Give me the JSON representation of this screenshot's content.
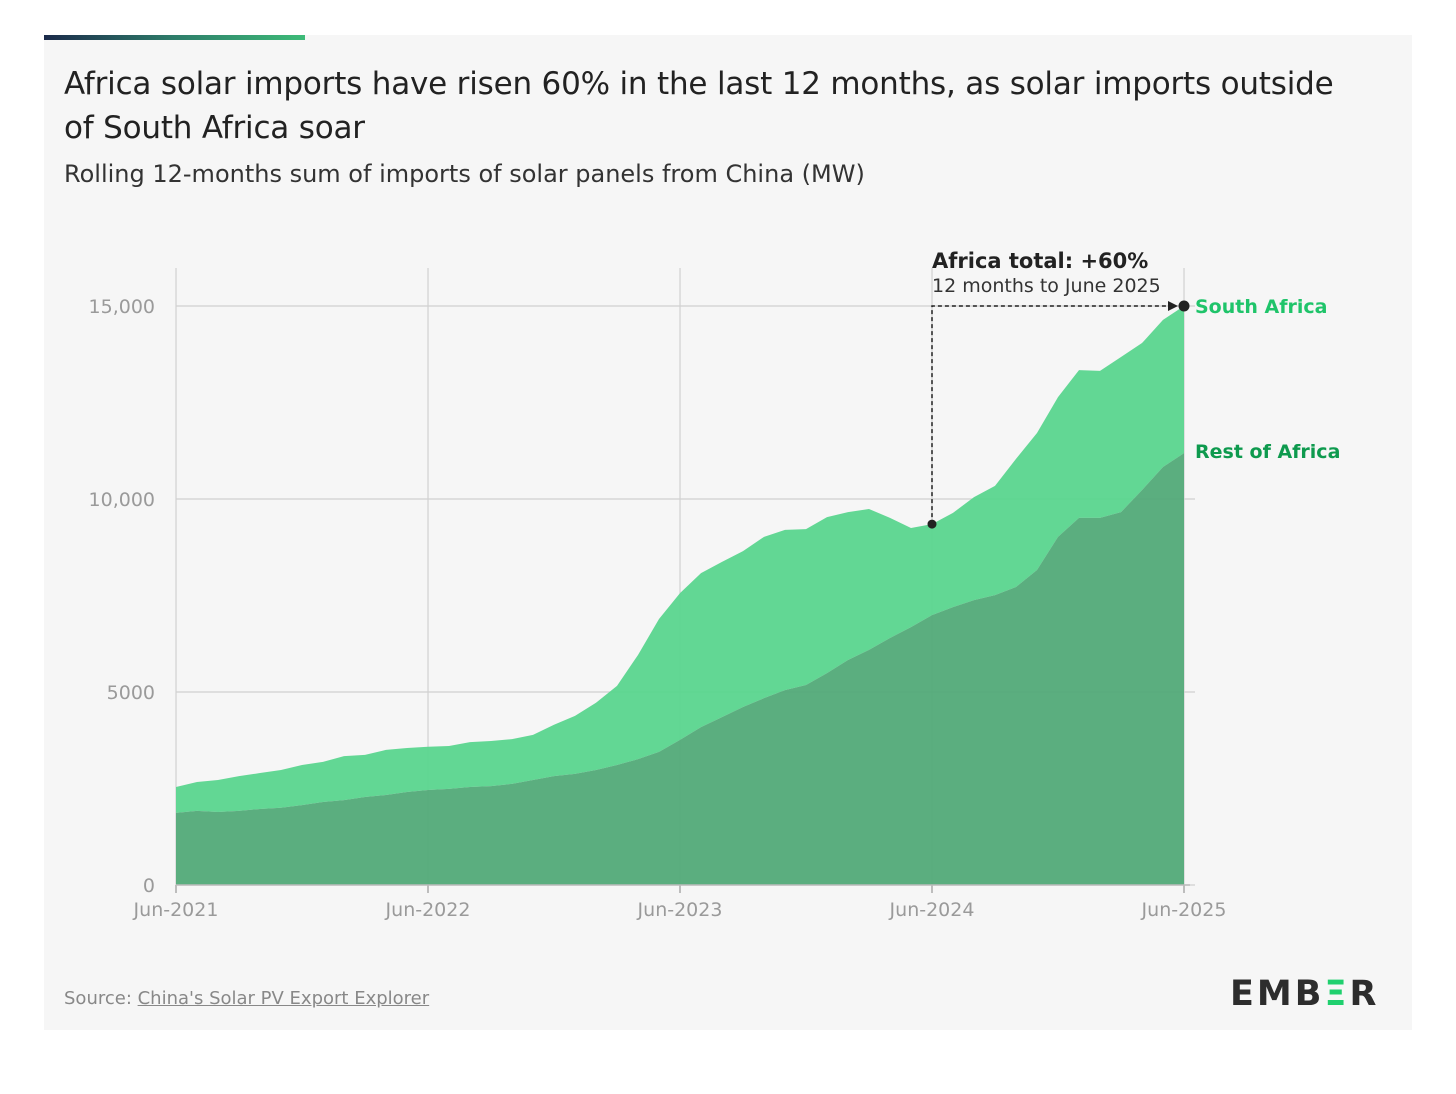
{
  "title": "Africa solar imports have risen 60% in the last 12 months, as solar imports outside of South Africa soar",
  "subtitle": "Rolling 12-months sum of imports of solar panels from China (MW)",
  "source_prefix": "Source: ",
  "source_link": "China's Solar PV Export Explorer",
  "logo_text": "EMBER",
  "colors": {
    "south_africa_area": "#5ad58e",
    "rest_area": "#52aa78",
    "south_africa_label": "#1fc46a",
    "rest_label": "#0e9a4e",
    "grid": "#d0d0d0",
    "annotation": "#222222"
  },
  "chart_data": {
    "type": "area",
    "stacked": true,
    "title": "Africa solar imports have risen 60% in the last 12 months, as solar imports outside of South Africa soar",
    "subtitle": "Rolling 12-months sum of imports of solar panels from China (MW)",
    "x_start": "Jun-2021",
    "x_frequency": "monthly",
    "x_ticks": [
      "Jun-2021",
      "Jun-2022",
      "Jun-2023",
      "Jun-2024",
      "Jun-2025"
    ],
    "y_ticks": [
      0,
      5000,
      10000,
      15000
    ],
    "y_tick_labels": [
      "0",
      "5000",
      "10,000",
      "15,000"
    ],
    "ylim": [
      0,
      15000
    ],
    "grid": true,
    "series": [
      {
        "name": "Rest of Africa",
        "values": [
          1870,
          1920,
          1890,
          1920,
          1970,
          2000,
          2070,
          2150,
          2200,
          2280,
          2330,
          2410,
          2460,
          2490,
          2540,
          2560,
          2620,
          2720,
          2820,
          2880,
          2980,
          3110,
          3260,
          3450,
          3760,
          4090,
          4350,
          4610,
          4840,
          5050,
          5180,
          5490,
          5830,
          6090,
          6400,
          6680,
          6990,
          7200,
          7380,
          7510,
          7720,
          8160,
          9020,
          9510,
          9510,
          9660,
          10230,
          10830,
          11190
        ]
      },
      {
        "name": "South Africa",
        "values": [
          670,
          750,
          830,
          900,
          930,
          980,
          1040,
          1040,
          1140,
          1090,
          1170,
          1140,
          1120,
          1110,
          1160,
          1170,
          1160,
          1170,
          1330,
          1500,
          1740,
          2050,
          2700,
          3440,
          3800,
          3990,
          4020,
          4040,
          4180,
          4150,
          4040,
          4040,
          3830,
          3650,
          3110,
          2570,
          2360,
          2440,
          2670,
          2830,
          3320,
          3550,
          3620,
          3830,
          3810,
          4020,
          3810,
          3810,
          3810
        ]
      }
    ],
    "annotation": {
      "title": "Africa total: +60%",
      "text": "12 months to June 2025",
      "from_index": 36,
      "to_index": 48
    }
  }
}
